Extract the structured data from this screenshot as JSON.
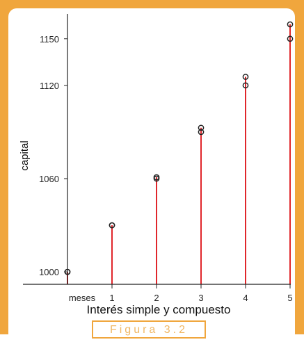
{
  "chart_data": {
    "type": "stem",
    "title": "Interés simple y compuesto",
    "xlabel": "",
    "ylabel": "capital",
    "x_tick_labels": [
      "meses",
      "1",
      "2",
      "3",
      "4",
      "5"
    ],
    "x": [
      0,
      1,
      2,
      3,
      4,
      5
    ],
    "ylim": [
      992,
      1166
    ],
    "y_ticks": [
      1000,
      1060,
      1120,
      1150
    ],
    "series": [
      {
        "values": [
          1000,
          1030,
          1060,
          1090,
          1120,
          1150
        ]
      },
      {
        "values": [
          1000,
          1030,
          1060.9,
          1092.73,
          1125.51,
          1159.27
        ]
      }
    ],
    "grid": false,
    "colors": {
      "stem": "#e0262b",
      "marker": "#222222"
    }
  },
  "figure_caption": "Figura 3.2"
}
